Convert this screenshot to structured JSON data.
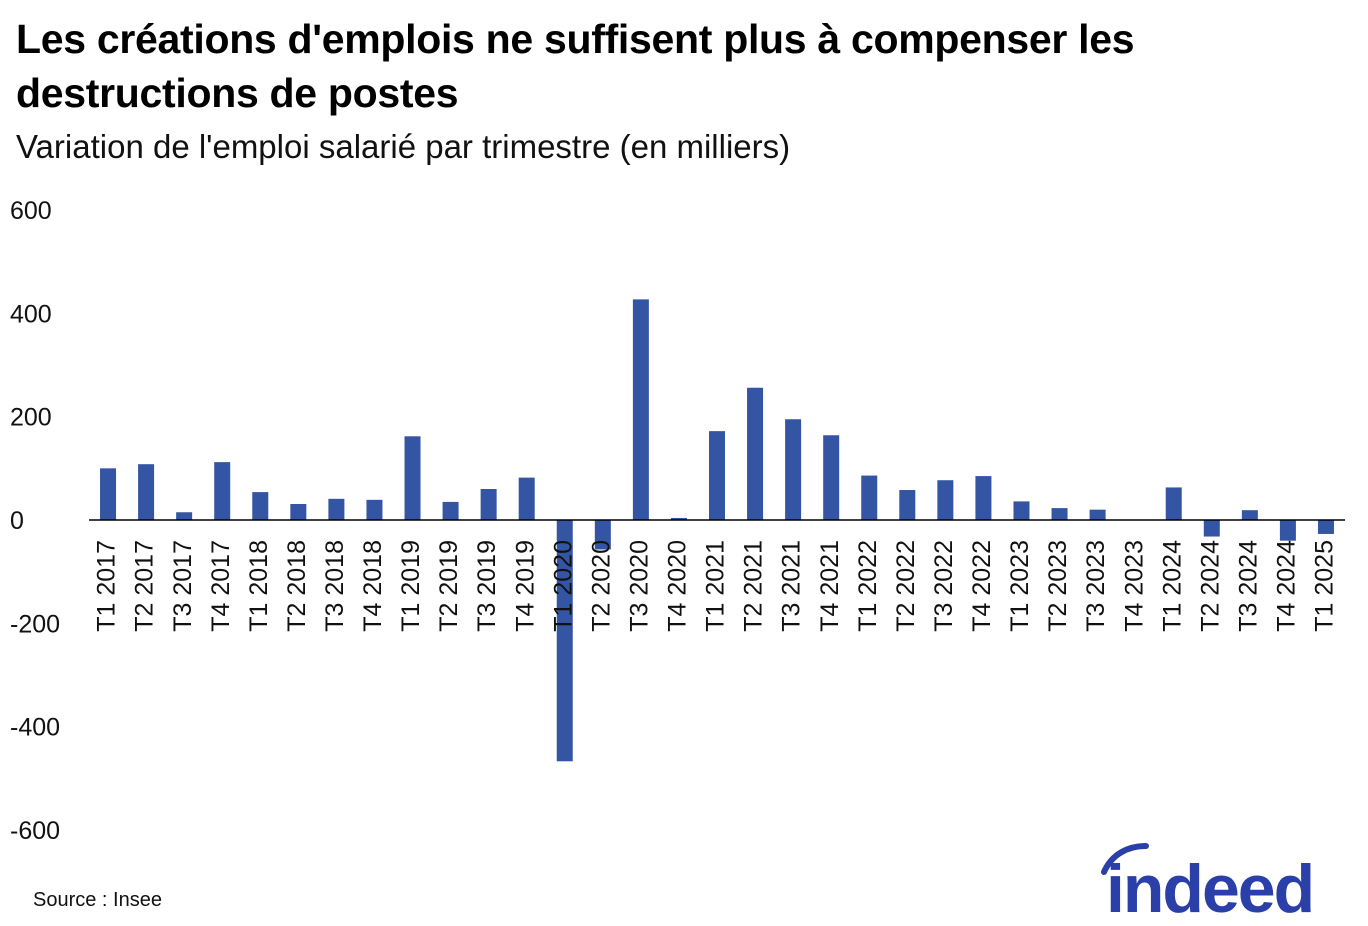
{
  "header": {
    "title": "Les créations d'emplois ne suffisent plus à compenser les destructions de postes",
    "subtitle": "Variation de l'emploi salarié par trimestre (en milliers)"
  },
  "footer": {
    "source": "Source : Insee",
    "logo_text": "indeed"
  },
  "colors": {
    "bar": "#3355a4",
    "axis": "#000000",
    "logo": "#2a3fa8"
  },
  "chart_data": {
    "type": "bar",
    "title": "Les créations d'emplois ne suffisent plus à compenser les destructions de postes",
    "subtitle": "Variation de l'emploi salarié par trimestre (en milliers)",
    "xlabel": "",
    "ylabel": "",
    "ylim": [
      -600,
      600
    ],
    "yticks": [
      "600",
      "400",
      "200",
      "0",
      "-200",
      "-400",
      "-600"
    ],
    "grid": false,
    "legend": "none",
    "categories": [
      "T1 2017",
      "T2 2017",
      "T3 2017",
      "T4 2017",
      "T1 2018",
      "T2 2018",
      "T3 2018",
      "T4 2018",
      "T1 2019",
      "T2 2019",
      "T3 2019",
      "T4 2019",
      "T1 2020",
      "T2 2020",
      "T3 2020",
      "T4 2020",
      "T1 2021",
      "T2 2021",
      "T3 2021",
      "T4 2021",
      "T1 2022",
      "T2 2022",
      "T3 2022",
      "T4 2022",
      "T1 2023",
      "T2 2023",
      "T3 2023",
      "T4 2023",
      "T1 2024",
      "T2 2024",
      "T3 2024",
      "T4 2024",
      "T1 2025"
    ],
    "values": [
      100,
      108,
      15,
      112,
      54,
      31,
      41,
      39,
      162,
      35,
      60,
      82,
      -467,
      -57,
      427,
      4,
      172,
      256,
      195,
      164,
      86,
      58,
      77,
      85,
      36,
      23,
      20,
      0,
      63,
      -32,
      19,
      -40,
      -27
    ]
  }
}
